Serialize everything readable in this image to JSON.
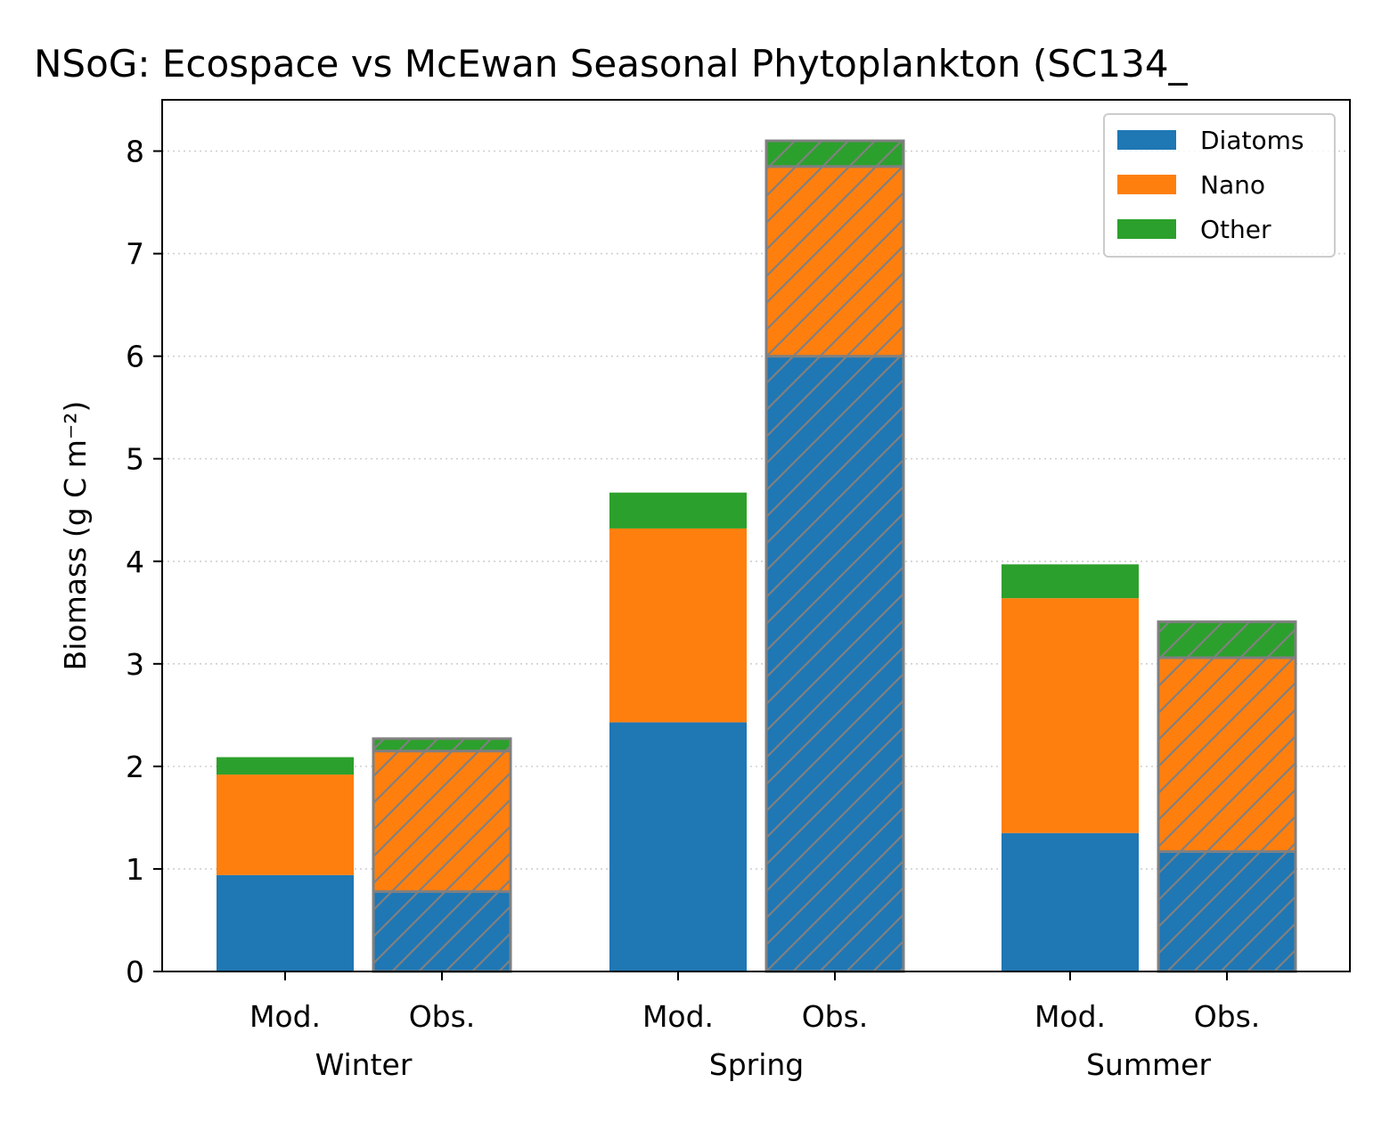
{
  "chart_data": {
    "type": "bar",
    "stacked": true,
    "title": "NSoG: Ecospace vs McEwan Seasonal Phytoplankton (SC134_",
    "xlabel": "",
    "ylabel": "Biomass (g C m⁻²)",
    "ylim": [
      0,
      8.5
    ],
    "yticks": [
      "0",
      "1",
      "2",
      "3",
      "4",
      "5",
      "6",
      "7",
      "8"
    ],
    "grid": "y-dotted",
    "legend_position": "top-right",
    "seasons": [
      "Winter",
      "Spring",
      "Summer"
    ],
    "bar_labels": [
      "Mod.",
      "Obs."
    ],
    "series": [
      {
        "name": "Diatoms",
        "color": "#1f77b4"
      },
      {
        "name": "Nano",
        "color": "#ff7f0e"
      },
      {
        "name": "Other",
        "color": "#2ca02c"
      }
    ],
    "bars": [
      {
        "season": "Winter",
        "label": "Mod.",
        "hatched": false,
        "values": [
          0.94,
          0.98,
          0.17
        ]
      },
      {
        "season": "Winter",
        "label": "Obs.",
        "hatched": true,
        "values": [
          0.78,
          1.37,
          0.12
        ]
      },
      {
        "season": "Spring",
        "label": "Mod.",
        "hatched": false,
        "values": [
          2.43,
          1.89,
          0.35
        ]
      },
      {
        "season": "Spring",
        "label": "Obs.",
        "hatched": true,
        "values": [
          6.0,
          1.85,
          0.25
        ]
      },
      {
        "season": "Summer",
        "label": "Mod.",
        "hatched": false,
        "values": [
          1.35,
          2.29,
          0.33
        ]
      },
      {
        "season": "Summer",
        "label": "Obs.",
        "hatched": true,
        "values": [
          1.17,
          1.89,
          0.35
        ]
      }
    ]
  }
}
